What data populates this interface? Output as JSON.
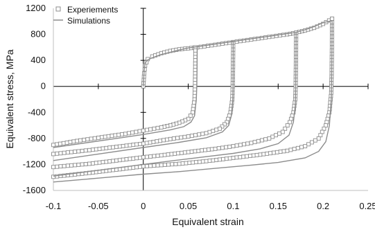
{
  "chart_data": {
    "type": "scatter",
    "xlabel": "Equivalent strain",
    "ylabel": "Equivalent stress, MPa",
    "xlim": [
      -0.1,
      0.25
    ],
    "ylim": [
      -1600,
      1200
    ],
    "x_ticks": [
      "-0.1",
      "-0.05",
      "0",
      "0.05",
      "0.1",
      "0.15",
      "0.2",
      "0.25"
    ],
    "y_ticks": [
      "1200",
      "800",
      "400",
      "0",
      "-400",
      "-800",
      "-1200",
      "-1600"
    ],
    "legend_position": "top-left",
    "colors": {
      "series": "#8c8c8c",
      "axis": "#000000"
    },
    "series": [
      {
        "name": "Experiements",
        "marker": "square",
        "segments": [
          [
            [
              0,
              0
            ],
            [
              0.001,
              200
            ],
            [
              0.002,
              320
            ],
            [
              0.005,
              420
            ],
            [
              0.01,
              460
            ],
            [
              0.02,
              510
            ],
            [
              0.03,
              545
            ],
            [
              0.04,
              570
            ],
            [
              0.05,
              585
            ],
            [
              0.06,
              600
            ],
            [
              0.08,
              640
            ],
            [
              0.1,
              680
            ],
            [
              0.12,
              720
            ],
            [
              0.14,
              760
            ],
            [
              0.16,
              800
            ],
            [
              0.17,
              825
            ],
            [
              0.18,
              860
            ],
            [
              0.19,
              900
            ],
            [
              0.2,
              960
            ],
            [
              0.21,
              1040
            ]
          ],
          [
            [
              0.058,
              600
            ],
            [
              0.0578,
              300
            ],
            [
              0.0575,
              0
            ],
            [
              0.057,
              -200
            ],
            [
              0.055,
              -400
            ],
            [
              0.05,
              -500
            ],
            [
              0.04,
              -560
            ],
            [
              0.03,
              -600
            ],
            [
              0.02,
              -630
            ],
            [
              0,
              -680
            ],
            [
              -0.02,
              -730
            ],
            [
              -0.05,
              -790
            ],
            [
              -0.07,
              -830
            ],
            [
              -0.1,
              -900
            ]
          ],
          [
            [
              0.1,
              670
            ],
            [
              0.0998,
              300
            ],
            [
              0.0995,
              0
            ],
            [
              0.099,
              -200
            ],
            [
              0.097,
              -400
            ],
            [
              0.093,
              -550
            ],
            [
              0.085,
              -650
            ],
            [
              0.07,
              -720
            ],
            [
              0.05,
              -770
            ],
            [
              0.03,
              -810
            ],
            [
              0,
              -880
            ],
            [
              -0.03,
              -930
            ],
            [
              -0.06,
              -980
            ],
            [
              -0.1,
              -1040
            ]
          ],
          [
            [
              0.17,
              825
            ],
            [
              0.1698,
              400
            ],
            [
              0.1695,
              0
            ],
            [
              0.169,
              -200
            ],
            [
              0.167,
              -400
            ],
            [
              0.163,
              -550
            ],
            [
              0.155,
              -700
            ],
            [
              0.14,
              -800
            ],
            [
              0.12,
              -870
            ],
            [
              0.1,
              -920
            ],
            [
              0.08,
              -960
            ],
            [
              0.05,
              -1010
            ],
            [
              0.02,
              -1060
            ],
            [
              0,
              -1090
            ],
            [
              -0.03,
              -1140
            ],
            [
              -0.06,
              -1190
            ],
            [
              -0.1,
              -1240
            ]
          ],
          [
            [
              0.21,
              1040
            ],
            [
              0.2098,
              600
            ],
            [
              0.2095,
              200
            ],
            [
              0.209,
              -100
            ],
            [
              0.207,
              -400
            ],
            [
              0.203,
              -600
            ],
            [
              0.195,
              -800
            ],
            [
              0.18,
              -920
            ],
            [
              0.16,
              -990
            ],
            [
              0.13,
              -1050
            ],
            [
              0.1,
              -1100
            ],
            [
              0.07,
              -1150
            ],
            [
              0.04,
              -1190
            ],
            [
              0.02,
              -1210
            ],
            [
              0,
              -1230
            ],
            [
              -0.03,
              -1280
            ],
            [
              -0.06,
              -1330
            ],
            [
              -0.1,
              -1390
            ]
          ]
        ]
      },
      {
        "name": "Simulations",
        "marker": "line",
        "segments": [
          [
            [
              0,
              0
            ],
            [
              0.001,
              250
            ],
            [
              0.002,
              350
            ],
            [
              0.004,
              400
            ],
            [
              0.01,
              440
            ],
            [
              0.02,
              490
            ],
            [
              0.03,
              525
            ],
            [
              0.04,
              560
            ],
            [
              0.05,
              590
            ],
            [
              0.06,
              610
            ],
            [
              0.08,
              650
            ],
            [
              0.1,
              690
            ],
            [
              0.12,
              730
            ],
            [
              0.14,
              770
            ],
            [
              0.16,
              810
            ],
            [
              0.17,
              830
            ],
            [
              0.18,
              870
            ],
            [
              0.19,
              920
            ],
            [
              0.2,
              980
            ],
            [
              0.21,
              1010
            ]
          ],
          [
            [
              0.06,
              610
            ],
            [
              0.0598,
              300
            ],
            [
              0.0595,
              0
            ],
            [
              0.059,
              -200
            ],
            [
              0.057,
              -450
            ],
            [
              0.053,
              -550
            ],
            [
              0.045,
              -620
            ],
            [
              0.03,
              -670
            ],
            [
              0,
              -740
            ],
            [
              -0.03,
              -800
            ],
            [
              -0.06,
              -860
            ],
            [
              -0.1,
              -940
            ]
          ],
          [
            [
              0.1,
              690
            ],
            [
              0.1,
              400
            ],
            [
              0.0998,
              0
            ],
            [
              0.0995,
              -200
            ],
            [
              0.098,
              -450
            ],
            [
              0.095,
              -600
            ],
            [
              0.088,
              -700
            ],
            [
              0.07,
              -790
            ],
            [
              0.04,
              -860
            ],
            [
              0,
              -940
            ],
            [
              -0.05,
              -1040
            ],
            [
              -0.1,
              -1140
            ]
          ],
          [
            [
              0.17,
              830
            ],
            [
              0.1698,
              400
            ],
            [
              0.1695,
              0
            ],
            [
              0.169,
              -300
            ],
            [
              0.167,
              -550
            ],
            [
              0.162,
              -750
            ],
            [
              0.15,
              -880
            ],
            [
              0.13,
              -960
            ],
            [
              0.1,
              -1030
            ],
            [
              0.07,
              -1080
            ],
            [
              0.04,
              -1130
            ],
            [
              0,
              -1200
            ],
            [
              -0.05,
              -1290
            ],
            [
              -0.1,
              -1380
            ]
          ],
          [
            [
              0.21,
              1010
            ],
            [
              0.2098,
              600
            ],
            [
              0.2095,
              200
            ],
            [
              0.209,
              -200
            ],
            [
              0.207,
              -600
            ],
            [
              0.203,
              -850
            ],
            [
              0.195,
              -1000
            ],
            [
              0.18,
              -1100
            ],
            [
              0.15,
              -1170
            ],
            [
              0.12,
              -1210
            ],
            [
              0.08,
              -1260
            ],
            [
              0.04,
              -1310
            ],
            [
              0,
              -1350
            ],
            [
              -0.05,
              -1410
            ],
            [
              -0.1,
              -1470
            ]
          ]
        ]
      }
    ]
  }
}
